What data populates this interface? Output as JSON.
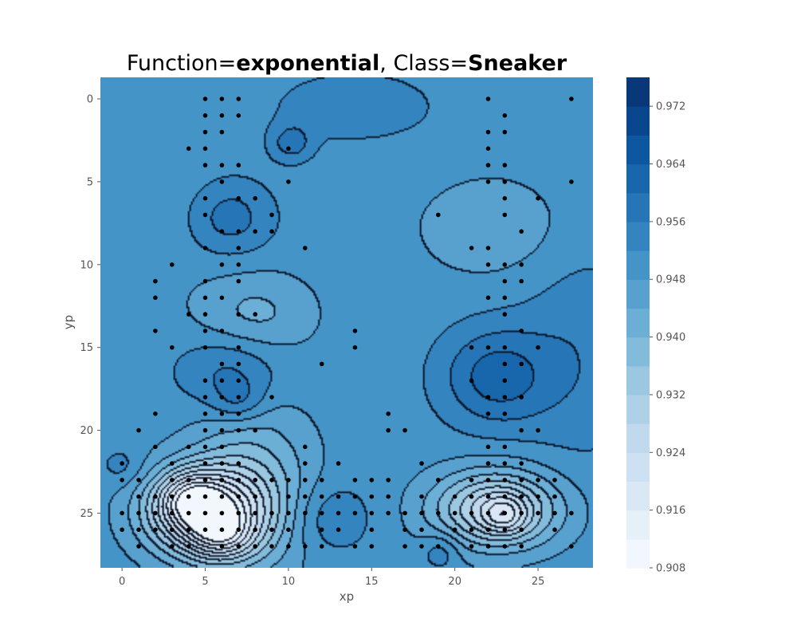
{
  "chart_data": {
    "type": "contour",
    "title_parts": [
      {
        "text": "Function=",
        "bold": false
      },
      {
        "text": "exponential",
        "bold": true
      },
      {
        "text": ", Class=",
        "bold": false
      },
      {
        "text": "Sneaker",
        "bold": true
      }
    ],
    "xlabel": "xp",
    "ylabel": "yp",
    "xlim": [
      -1.3,
      28.3
    ],
    "ylim": [
      28.3,
      -1.3
    ],
    "y_inverted": true,
    "xticks": [
      0,
      5,
      10,
      15,
      20,
      25
    ],
    "yticks": [
      0,
      5,
      10,
      15,
      20,
      25
    ],
    "grid": false,
    "colormap": "Blues",
    "colorbar": {
      "min": 0.908,
      "max": 0.976,
      "levels": [
        0.908,
        0.912,
        0.916,
        0.92,
        0.924,
        0.928,
        0.932,
        0.936,
        0.94,
        0.944,
        0.948,
        0.952,
        0.956,
        0.96,
        0.964,
        0.968,
        0.972,
        0.976
      ],
      "ticks": [
        "0.908",
        "0.916",
        "0.924",
        "0.932",
        "0.940",
        "0.948",
        "0.956",
        "0.964",
        "0.972"
      ]
    },
    "background_value": 0.95,
    "features": [
      {
        "x": 14,
        "y": 0.5,
        "sx": 3.0,
        "sy": 1.3,
        "amp": 0.006
      },
      {
        "x": 10.2,
        "y": 2.7,
        "sx": 0.9,
        "sy": 0.8,
        "amp": 0.008
      },
      {
        "x": 6.5,
        "y": 7.2,
        "sx": 1.8,
        "sy": 1.6,
        "amp": 0.008
      },
      {
        "x": 6.5,
        "y": 16.5,
        "sx": 2.2,
        "sy": 1.6,
        "amp": 0.008
      },
      {
        "x": 7.0,
        "y": 18.3,
        "sx": 1.1,
        "sy": 0.9,
        "amp": 0.006
      },
      {
        "x": 8.0,
        "y": 13.0,
        "sx": 2.5,
        "sy": 1.8,
        "amp": -0.007
      },
      {
        "x": 22.5,
        "y": 16.8,
        "sx": 2.3,
        "sy": 2.1,
        "amp": 0.012
      },
      {
        "x": 22.3,
        "y": 7.8,
        "sx": 3.2,
        "sy": 2.2,
        "amp": -0.005
      },
      {
        "x": 27.5,
        "y": 15.5,
        "sx": 2.5,
        "sy": 4.5,
        "amp": 0.005
      },
      {
        "x": 1.0,
        "y": 6.0,
        "sx": 3.0,
        "sy": 4.0,
        "amp": -0.002
      },
      {
        "x": 5.0,
        "y": 25.0,
        "sx": 2.4,
        "sy": 1.8,
        "amp": -0.035
      },
      {
        "x": 4.0,
        "y": 24.0,
        "sx": 1.3,
        "sy": 1.1,
        "amp": -0.012
      },
      {
        "x": 6.0,
        "y": 26.5,
        "sx": 1.3,
        "sy": 1.0,
        "amp": -0.012
      },
      {
        "x": 7.8,
        "y": 23.5,
        "sx": 2.5,
        "sy": 3.5,
        "amp": -0.012
      },
      {
        "x": 22.5,
        "y": 24.8,
        "sx": 2.6,
        "sy": 1.6,
        "amp": -0.025
      },
      {
        "x": 23.0,
        "y": 25.2,
        "sx": 0.9,
        "sy": 0.8,
        "amp": -0.01
      },
      {
        "x": 12.5,
        "y": 25.3,
        "sx": 1.7,
        "sy": 1.5,
        "amp": 0.006
      },
      {
        "x": 19.2,
        "y": 27.3,
        "sx": 0.8,
        "sy": 0.8,
        "amp": 0.006
      },
      {
        "x": 0.0,
        "y": 22.2,
        "sx": 0.9,
        "sy": 0.8,
        "amp": 0.004
      }
    ],
    "points": [
      [
        5,
        0
      ],
      [
        6,
        0
      ],
      [
        7,
        0
      ],
      [
        22,
        0
      ],
      [
        27,
        0
      ],
      [
        5,
        1
      ],
      [
        6,
        1
      ],
      [
        7,
        1
      ],
      [
        23,
        1
      ],
      [
        5,
        2
      ],
      [
        6,
        2
      ],
      [
        22,
        2
      ],
      [
        23,
        2
      ],
      [
        4,
        3
      ],
      [
        5,
        3
      ],
      [
        10,
        3
      ],
      [
        22,
        3
      ],
      [
        5,
        4
      ],
      [
        6,
        4
      ],
      [
        7,
        4
      ],
      [
        22,
        4
      ],
      [
        23,
        4
      ],
      [
        6,
        5
      ],
      [
        10,
        5
      ],
      [
        22,
        5
      ],
      [
        23,
        5
      ],
      [
        27,
        5
      ],
      [
        5,
        6
      ],
      [
        7,
        6
      ],
      [
        8,
        6
      ],
      [
        23,
        6
      ],
      [
        25,
        6
      ],
      [
        5,
        7
      ],
      [
        9,
        7
      ],
      [
        19,
        7
      ],
      [
        23,
        7
      ],
      [
        6,
        8
      ],
      [
        7,
        8
      ],
      [
        8,
        8
      ],
      [
        9,
        8
      ],
      [
        24,
        8
      ],
      [
        5,
        9
      ],
      [
        7,
        9
      ],
      [
        11,
        9
      ],
      [
        21,
        9
      ],
      [
        22,
        9
      ],
      [
        3,
        10
      ],
      [
        6,
        10
      ],
      [
        7,
        10
      ],
      [
        22,
        10
      ],
      [
        23,
        10
      ],
      [
        24,
        10
      ],
      [
        2,
        11
      ],
      [
        5,
        11
      ],
      [
        7,
        11
      ],
      [
        23,
        11
      ],
      [
        24,
        11
      ],
      [
        2,
        12
      ],
      [
        5,
        12
      ],
      [
        6,
        12
      ],
      [
        22,
        12
      ],
      [
        23,
        12
      ],
      [
        4,
        13
      ],
      [
        5,
        13
      ],
      [
        7,
        13
      ],
      [
        8,
        13
      ],
      [
        23,
        13
      ],
      [
        2,
        14
      ],
      [
        5,
        14
      ],
      [
        6,
        14
      ],
      [
        14,
        14
      ],
      [
        24,
        14
      ],
      [
        3,
        15
      ],
      [
        5,
        15
      ],
      [
        7,
        15
      ],
      [
        14,
        15
      ],
      [
        21,
        15
      ],
      [
        22,
        15
      ],
      [
        23,
        15
      ],
      [
        25,
        15
      ],
      [
        6,
        16
      ],
      [
        7,
        16
      ],
      [
        12,
        16
      ],
      [
        23,
        16
      ],
      [
        24,
        16
      ],
      [
        5,
        17
      ],
      [
        6,
        17
      ],
      [
        7,
        17
      ],
      [
        21,
        17
      ],
      [
        23,
        17
      ],
      [
        5,
        18
      ],
      [
        6,
        18
      ],
      [
        7,
        18
      ],
      [
        9,
        18
      ],
      [
        22,
        18
      ],
      [
        23,
        18
      ],
      [
        24,
        18
      ],
      [
        2,
        19
      ],
      [
        5,
        19
      ],
      [
        6,
        19
      ],
      [
        7,
        19
      ],
      [
        16,
        19
      ],
      [
        22,
        19
      ],
      [
        23,
        19
      ],
      [
        1,
        20
      ],
      [
        5,
        20
      ],
      [
        6,
        20
      ],
      [
        7,
        20
      ],
      [
        8,
        20
      ],
      [
        16,
        20
      ],
      [
        17,
        20
      ],
      [
        24,
        20
      ],
      [
        25,
        20
      ],
      [
        2,
        21
      ],
      [
        4,
        21
      ],
      [
        5,
        21
      ],
      [
        6,
        21
      ],
      [
        11,
        21
      ],
      [
        22,
        21
      ],
      [
        23,
        21
      ],
      [
        0,
        22
      ],
      [
        3,
        22
      ],
      [
        5,
        22
      ],
      [
        6,
        22
      ],
      [
        7,
        22
      ],
      [
        11,
        22
      ],
      [
        13,
        22
      ],
      [
        18,
        22
      ],
      [
        22,
        22
      ],
      [
        23,
        22
      ],
      [
        24,
        22
      ],
      [
        0,
        23
      ],
      [
        1,
        23
      ],
      [
        3,
        23
      ],
      [
        4,
        23
      ],
      [
        5,
        23
      ],
      [
        6,
        23
      ],
      [
        7,
        23
      ],
      [
        8,
        23
      ],
      [
        9,
        23
      ],
      [
        10,
        23
      ],
      [
        11,
        23
      ],
      [
        12,
        23
      ],
      [
        14,
        23
      ],
      [
        15,
        23
      ],
      [
        16,
        23
      ],
      [
        19,
        23
      ],
      [
        21,
        23
      ],
      [
        22,
        23
      ],
      [
        23,
        23
      ],
      [
        24,
        23
      ],
      [
        25,
        23
      ],
      [
        26,
        23
      ],
      [
        1,
        24
      ],
      [
        2,
        24
      ],
      [
        3,
        24
      ],
      [
        4,
        24
      ],
      [
        5,
        24
      ],
      [
        6,
        24
      ],
      [
        7,
        24
      ],
      [
        8,
        24
      ],
      [
        10,
        24
      ],
      [
        11,
        24
      ],
      [
        12,
        24
      ],
      [
        13,
        24
      ],
      [
        14,
        24
      ],
      [
        15,
        24
      ],
      [
        16,
        24
      ],
      [
        18,
        24
      ],
      [
        20,
        24
      ],
      [
        21,
        24
      ],
      [
        22,
        24
      ],
      [
        23,
        24
      ],
      [
        24,
        24
      ],
      [
        25,
        24
      ],
      [
        26,
        24
      ],
      [
        0,
        25
      ],
      [
        1,
        25
      ],
      [
        2,
        25
      ],
      [
        3,
        25
      ],
      [
        4,
        25
      ],
      [
        5,
        25
      ],
      [
        6,
        25
      ],
      [
        7,
        25
      ],
      [
        8,
        25
      ],
      [
        9,
        25
      ],
      [
        10,
        25
      ],
      [
        11,
        25
      ],
      [
        12,
        25
      ],
      [
        13,
        25
      ],
      [
        14,
        25
      ],
      [
        15,
        25
      ],
      [
        16,
        25
      ],
      [
        17,
        25
      ],
      [
        18,
        25
      ],
      [
        19,
        25
      ],
      [
        20,
        25
      ],
      [
        21,
        25
      ],
      [
        22,
        25
      ],
      [
        23,
        25
      ],
      [
        24,
        25
      ],
      [
        25,
        25
      ],
      [
        26,
        25
      ],
      [
        27,
        25
      ],
      [
        0,
        26
      ],
      [
        1,
        26
      ],
      [
        2,
        26
      ],
      [
        3,
        26
      ],
      [
        4,
        26
      ],
      [
        5,
        26
      ],
      [
        6,
        26
      ],
      [
        7,
        26
      ],
      [
        8,
        26
      ],
      [
        9,
        26
      ],
      [
        10,
        26
      ],
      [
        12,
        26
      ],
      [
        13,
        26
      ],
      [
        15,
        26
      ],
      [
        17,
        26
      ],
      [
        18,
        26
      ],
      [
        20,
        26
      ],
      [
        21,
        26
      ],
      [
        22,
        26
      ],
      [
        23,
        26
      ],
      [
        24,
        26
      ],
      [
        26,
        26
      ],
      [
        1,
        27
      ],
      [
        3,
        27
      ],
      [
        4,
        27
      ],
      [
        6,
        27
      ],
      [
        7,
        27
      ],
      [
        8,
        27
      ],
      [
        9,
        27
      ],
      [
        10,
        27
      ],
      [
        11,
        27
      ],
      [
        12,
        27
      ],
      [
        14,
        27
      ],
      [
        15,
        27
      ],
      [
        17,
        27
      ],
      [
        18,
        27
      ],
      [
        19,
        27
      ],
      [
        21,
        27
      ],
      [
        22,
        27
      ],
      [
        23,
        27
      ],
      [
        24,
        27
      ],
      [
        27,
        27
      ]
    ]
  }
}
